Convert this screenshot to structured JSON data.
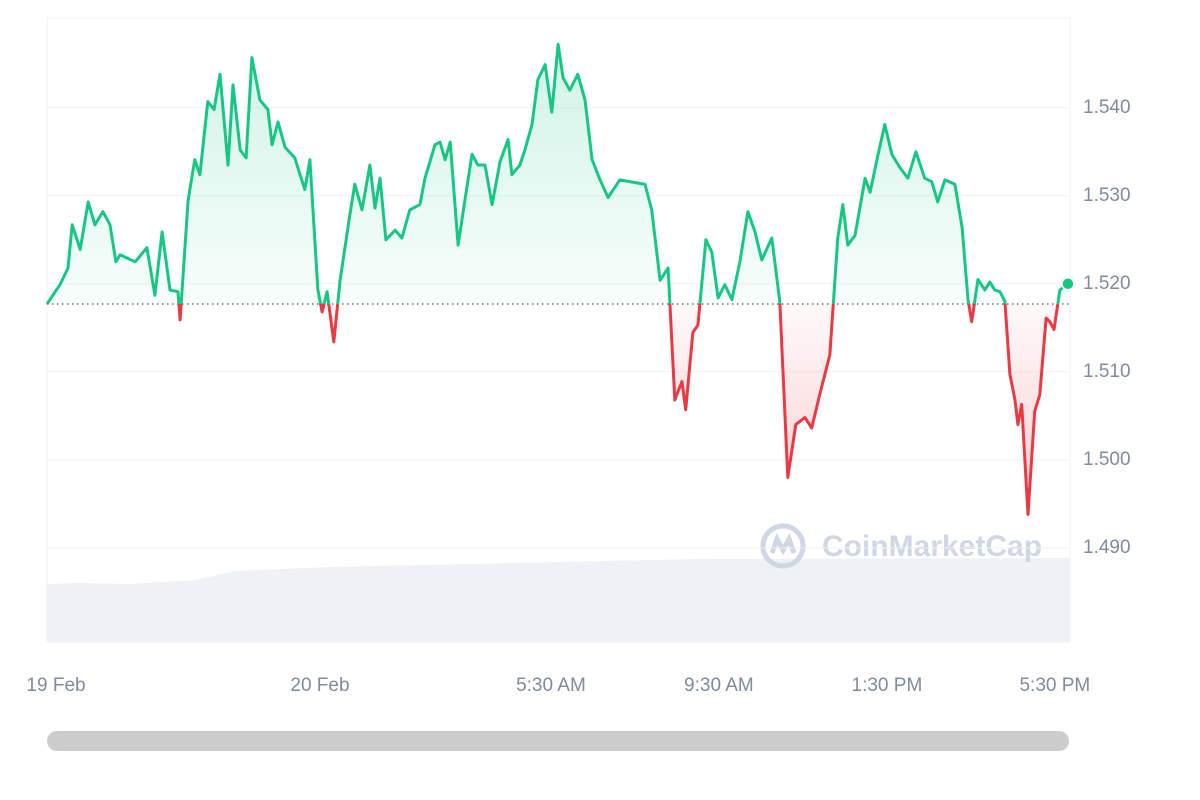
{
  "chart_data": {
    "type": "line",
    "watermark": "CoinMarketCap",
    "baseline": 1.5177,
    "x": [
      0,
      0.31,
      0.5,
      0.6,
      0.79,
      0.98,
      1.14,
      1.33,
      1.5,
      1.64,
      1.74,
      2.1,
      2.38,
      2.57,
      2.74,
      2.93,
      3.12,
      3.17,
      3.36,
      3.52,
      3.64,
      3.83,
      3.98,
      4.12,
      4.31,
      4.43,
      4.6,
      4.74,
      4.88,
      5.07,
      5.26,
      5.36,
      5.5,
      5.67,
      5.9,
      6.14,
      6.26,
      6.45,
      6.55,
      6.67,
      6.83,
      6.98,
      7.21,
      7.33,
      7.5,
      7.69,
      7.81,
      7.93,
      8.07,
      8.29,
      8.45,
      8.64,
      8.88,
      9,
      9.24,
      9.36,
      9.48,
      9.6,
      9.79,
      9.95,
      10.12,
      10.26,
      10.43,
      10.6,
      10.79,
      10.98,
      11.07,
      11.26,
      11.38,
      11.55,
      11.69,
      11.86,
      12.02,
      12.17,
      12.29,
      12.45,
      12.64,
      12.81,
      12.98,
      13.17,
      13.36,
      13.64,
      13.88,
      14.24,
      14.4,
      14.6,
      14.79,
      14.95,
      15.12,
      15.21,
      15.38,
      15.5,
      15.69,
      15.83,
      15.98,
      16.14,
      16.31,
      16.5,
      16.69,
      16.86,
      17.02,
      17.26,
      17.45,
      17.64,
      17.83,
      18.05,
      18.21,
      18.4,
      18.64,
      18.83,
      18.95,
      19.07,
      19.24,
      19.48,
      19.6,
      19.79,
      19.95,
      20.12,
      20.31,
      20.5,
      20.69,
      20.9,
      21.07,
      21.21,
      21.38,
      21.62,
      21.79,
      21.93,
      22.02,
      22.17,
      22.33,
      22.45,
      22.57,
      22.69,
      22.81,
      22.93,
      23.05,
      23.12,
      23.21,
      23.36,
      23.52,
      23.64,
      23.79,
      23.88,
      23.98,
      24.12,
      24.31
    ],
    "series": [
      {
        "color": "#16c784",
        "negative_color": "#ea3943",
        "values": [
          1.5177,
          1.5199,
          1.5218,
          1.5267,
          1.5239,
          1.5293,
          1.5267,
          1.5282,
          1.5267,
          1.5225,
          1.5233,
          1.5225,
          1.5241,
          1.5187,
          1.5259,
          1.5193,
          1.5191,
          1.5159,
          1.5295,
          1.5341,
          1.5324,
          1.5407,
          1.5398,
          1.5438,
          1.5335,
          1.5426,
          1.5352,
          1.5343,
          1.5457,
          1.5409,
          1.5398,
          1.5358,
          1.5384,
          1.5355,
          1.5343,
          1.5307,
          1.5341,
          1.5193,
          1.5168,
          1.5191,
          1.5134,
          1.5204,
          1.5278,
          1.5313,
          1.5284,
          1.5335,
          1.5286,
          1.532,
          1.525,
          1.5261,
          1.5252,
          1.5284,
          1.529,
          1.532,
          1.5358,
          1.5361,
          1.5341,
          1.5361,
          1.5244,
          1.5295,
          1.5347,
          1.5335,
          1.5335,
          1.529,
          1.5339,
          1.5364,
          1.5324,
          1.5335,
          1.5352,
          1.5381,
          1.5432,
          1.5449,
          1.5395,
          1.5472,
          1.5434,
          1.542,
          1.5438,
          1.5409,
          1.5341,
          1.5318,
          1.5298,
          1.5318,
          1.5316,
          1.5313,
          1.5284,
          1.5204,
          1.5218,
          1.5068,
          1.5089,
          1.5057,
          1.5145,
          1.5153,
          1.525,
          1.5236,
          1.5184,
          1.5199,
          1.5182,
          1.5225,
          1.5282,
          1.5259,
          1.5227,
          1.5252,
          1.518,
          1.498,
          1.504,
          1.5048,
          1.5036,
          1.5074,
          1.5119,
          1.5252,
          1.529,
          1.5244,
          1.5255,
          1.532,
          1.5304,
          1.5347,
          1.5381,
          1.5347,
          1.5332,
          1.532,
          1.535,
          1.532,
          1.5316,
          1.5293,
          1.5318,
          1.5313,
          1.5264,
          1.5182,
          1.5157,
          1.5205,
          1.5193,
          1.5202,
          1.5193,
          1.5191,
          1.518,
          1.5097,
          1.5068,
          1.504,
          1.5063,
          1.4938,
          1.5055,
          1.5074,
          1.5161,
          1.5157,
          1.5148,
          1.5193,
          1.52
        ]
      }
    ],
    "xlim": [
      0,
      24.36
    ],
    "xticks": [
      {
        "value": 0,
        "label": "19 Feb"
      },
      {
        "value": 6.5,
        "label": "20 Feb"
      },
      {
        "value": 12,
        "label": "5:30 AM"
      },
      {
        "value": 16,
        "label": "9:30 AM"
      },
      {
        "value": 20,
        "label": "1:30 PM"
      },
      {
        "value": 24,
        "label": "5:30 PM"
      }
    ],
    "ylim": [
      1.4793,
      1.5502
    ],
    "yticks": [
      {
        "value": 1.49,
        "label": "1.490"
      },
      {
        "value": 1.5,
        "label": "1.500"
      },
      {
        "value": 1.51,
        "label": "1.510"
      },
      {
        "value": 1.52,
        "label": "1.520"
      },
      {
        "value": 1.53,
        "label": "1.530"
      },
      {
        "value": 1.54,
        "label": "1.540"
      }
    ],
    "grid": true
  }
}
